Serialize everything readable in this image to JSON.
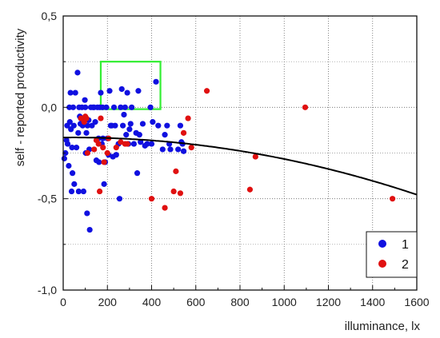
{
  "chart_data": {
    "type": "scatter",
    "xlabel": "illuminance, lx",
    "ylabel": "self - reported productivity",
    "xlim": [
      0,
      1600
    ],
    "ylim": [
      -1.0,
      0.5
    ],
    "x_ticks": [
      "0",
      "200",
      "400",
      "600",
      "800",
      "1000",
      "1200",
      "1400",
      "1600"
    ],
    "y_ticks": [
      "-1,0",
      "-0,5",
      "0,0",
      "0,5"
    ],
    "grid": "dotted",
    "legend_position": "bottom-right",
    "series": [
      {
        "name": "1",
        "color": "#1010e0",
        "points": [
          [
            5,
            -0.28
          ],
          [
            10,
            -0.25
          ],
          [
            15,
            -0.18
          ],
          [
            18,
            -0.1
          ],
          [
            20,
            -0.2
          ],
          [
            25,
            -0.32
          ],
          [
            28,
            0.0
          ],
          [
            30,
            -0.08
          ],
          [
            33,
            0.08
          ],
          [
            35,
            -0.12
          ],
          [
            38,
            -0.46
          ],
          [
            40,
            -0.22
          ],
          [
            42,
            -0.36
          ],
          [
            45,
            0.0
          ],
          [
            48,
            -0.1
          ],
          [
            50,
            -0.42
          ],
          [
            55,
            0.08
          ],
          [
            60,
            -0.22
          ],
          [
            65,
            0.19
          ],
          [
            68,
            -0.14
          ],
          [
            70,
            -0.46
          ],
          [
            72,
            0.0
          ],
          [
            75,
            -0.05
          ],
          [
            78,
            -0.09
          ],
          [
            80,
            -0.06
          ],
          [
            85,
            0.0
          ],
          [
            88,
            -0.1
          ],
          [
            90,
            -0.06
          ],
          [
            92,
            -0.46
          ],
          [
            95,
            -0.07
          ],
          [
            98,
            0.04
          ],
          [
            100,
            0.0
          ],
          [
            102,
            -0.25
          ],
          [
            105,
            -0.14
          ],
          [
            108,
            -0.58
          ],
          [
            110,
            -0.1
          ],
          [
            115,
            -0.07
          ],
          [
            118,
            -0.23
          ],
          [
            120,
            -0.67
          ],
          [
            125,
            0.0
          ],
          [
            130,
            -0.1
          ],
          [
            135,
            0.0
          ],
          [
            140,
            0.0
          ],
          [
            145,
            -0.08
          ],
          [
            150,
            -0.29
          ],
          [
            155,
            0.0
          ],
          [
            160,
            -0.17
          ],
          [
            162,
            -0.3
          ],
          [
            165,
            0.0
          ],
          [
            170,
            0.08
          ],
          [
            175,
            -0.2
          ],
          [
            178,
            0.0
          ],
          [
            180,
            -0.17
          ],
          [
            185,
            -0.42
          ],
          [
            190,
            -0.3
          ],
          [
            195,
            0.0
          ],
          [
            200,
            -0.17
          ],
          [
            205,
            -0.26
          ],
          [
            210,
            0.09
          ],
          [
            215,
            -0.1
          ],
          [
            220,
            -0.1
          ],
          [
            225,
            -0.27
          ],
          [
            230,
            0.0
          ],
          [
            235,
            -0.1
          ],
          [
            240,
            -0.26
          ],
          [
            250,
            -0.2
          ],
          [
            255,
            -0.5
          ],
          [
            260,
            0.0
          ],
          [
            265,
            0.1
          ],
          [
            270,
            -0.1
          ],
          [
            275,
            -0.04
          ],
          [
            280,
            0.0
          ],
          [
            285,
            -0.15
          ],
          [
            290,
            0.08
          ],
          [
            295,
            -0.2
          ],
          [
            300,
            -0.12
          ],
          [
            305,
            -0.09
          ],
          [
            310,
            0.0
          ],
          [
            320,
            -0.2
          ],
          [
            330,
            -0.14
          ],
          [
            335,
            -0.36
          ],
          [
            340,
            0.09
          ],
          [
            345,
            -0.15
          ],
          [
            350,
            -0.19
          ],
          [
            360,
            -0.09
          ],
          [
            370,
            -0.21
          ],
          [
            380,
            -0.2
          ],
          [
            395,
            0.0
          ],
          [
            400,
            -0.2
          ],
          [
            405,
            -0.08
          ],
          [
            420,
            0.14
          ],
          [
            430,
            -0.1
          ],
          [
            450,
            -0.23
          ],
          [
            460,
            -0.15
          ],
          [
            470,
            -0.1
          ],
          [
            480,
            -0.2
          ],
          [
            485,
            -0.23
          ],
          [
            520,
            -0.23
          ],
          [
            530,
            -0.1
          ],
          [
            535,
            -0.19
          ],
          [
            540,
            -0.2
          ],
          [
            545,
            -0.24
          ]
        ]
      },
      {
        "name": "2",
        "color": "#e01010",
        "points": [
          [
            80,
            -0.06
          ],
          [
            95,
            -0.08
          ],
          [
            100,
            -0.05
          ],
          [
            105,
            -0.06
          ],
          [
            110,
            -0.25
          ],
          [
            140,
            -0.23
          ],
          [
            150,
            -0.18
          ],
          [
            160,
            -0.2
          ],
          [
            165,
            -0.46
          ],
          [
            170,
            -0.06
          ],
          [
            180,
            -0.22
          ],
          [
            185,
            -0.3
          ],
          [
            200,
            -0.25
          ],
          [
            205,
            -0.17
          ],
          [
            240,
            -0.22
          ],
          [
            260,
            -0.19
          ],
          [
            280,
            -0.2
          ],
          [
            290,
            -0.2
          ],
          [
            400,
            -0.5
          ],
          [
            460,
            -0.55
          ],
          [
            500,
            -0.46
          ],
          [
            510,
            -0.35
          ],
          [
            530,
            -0.47
          ],
          [
            545,
            -0.14
          ],
          [
            565,
            -0.06
          ],
          [
            580,
            -0.22
          ],
          [
            650,
            0.09
          ],
          [
            845,
            -0.45
          ],
          [
            870,
            -0.27
          ],
          [
            1095,
            0.0
          ],
          [
            1490,
            -0.5
          ]
        ]
      }
    ],
    "trend_line": {
      "type": "quadratic",
      "coefficients": [
        -0.1652,
        1.25e-05,
        -1.3e-07
      ]
    },
    "highlight_box": {
      "color": "#33ee33",
      "x_range": [
        170,
        440
      ],
      "y_range": [
        -0.01,
        0.25
      ]
    }
  }
}
